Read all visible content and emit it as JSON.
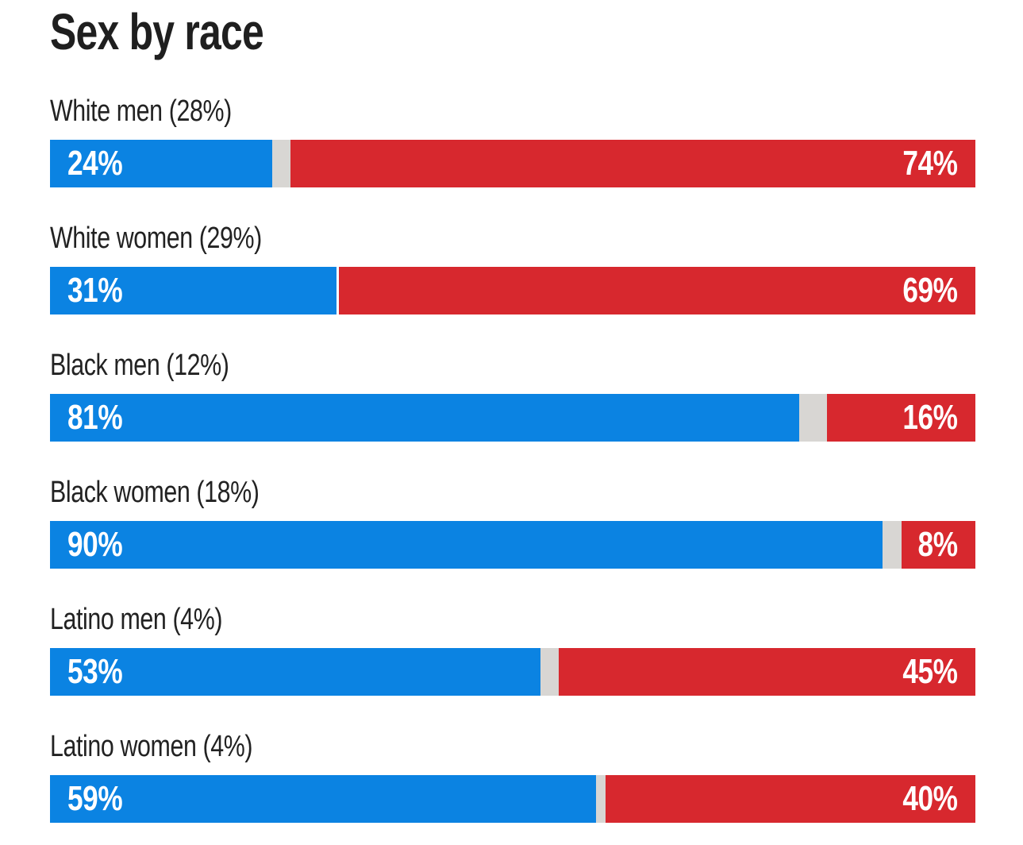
{
  "chart_data": {
    "type": "bar",
    "orientation": "horizontal-stacked",
    "title": "Sex by race",
    "categories": [
      "White men (28%)",
      "White women (29%)",
      "Black men (12%)",
      "Black women (18%)",
      "Latino men (4%)",
      "Latino women (4%)"
    ],
    "series": [
      {
        "name": "blue",
        "values": [
          24,
          31,
          81,
          90,
          53,
          59
        ]
      },
      {
        "name": "gray",
        "values": [
          2,
          0,
          3,
          2,
          2,
          1
        ]
      },
      {
        "name": "red",
        "values": [
          74,
          69,
          16,
          8,
          45,
          40
        ]
      }
    ],
    "value_suffix": "%",
    "xlim": [
      0,
      100
    ],
    "grid": false,
    "legend": "none"
  },
  "colors": {
    "blue": "#0b83e2",
    "gray": "#d8d6d3",
    "red": "#d7282e",
    "title_text": "#1f1f1f",
    "label_text": "#222222",
    "value_text": "#ffffff",
    "background": "#ffffff",
    "divider": "#ffffff"
  }
}
